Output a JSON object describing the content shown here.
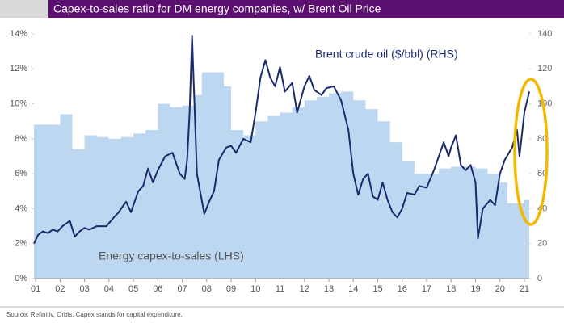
{
  "chart_data": {
    "type": "area_line",
    "title": "Capex-to-sales ratio for DM energy companies, w/ Brent Oil Price",
    "annotations": [
      "Brent crude oil ($/bbl) (RHS)",
      "Energy capex-to-sales (LHS)"
    ],
    "source": "Source: Refinitiv, Orbis. Capex stands for capital expenditure.",
    "xlim": [
      2000.93,
      2021.2
    ],
    "xticks": [
      {
        "value": 2001,
        "label": "01"
      },
      {
        "value": 2002,
        "label": "02"
      },
      {
        "value": 2003,
        "label": "03"
      },
      {
        "value": 2004,
        "label": "04"
      },
      {
        "value": 2005,
        "label": "05"
      },
      {
        "value": 2006,
        "label": "06"
      },
      {
        "value": 2007,
        "label": "07"
      },
      {
        "value": 2008,
        "label": "08"
      },
      {
        "value": 2009,
        "label": "09"
      },
      {
        "value": 2010,
        "label": "10"
      },
      {
        "value": 2011,
        "label": "11"
      },
      {
        "value": 2012,
        "label": "12"
      },
      {
        "value": 2013,
        "label": "13"
      },
      {
        "value": 2014,
        "label": "14"
      },
      {
        "value": 2015,
        "label": "15"
      },
      {
        "value": 2016,
        "label": "16"
      },
      {
        "value": 2017,
        "label": "17"
      },
      {
        "value": 2018,
        "label": "18"
      },
      {
        "value": 2019,
        "label": "19"
      },
      {
        "value": 2020,
        "label": "20"
      },
      {
        "value": 2021,
        "label": "21"
      }
    ],
    "ylim": [
      0,
      14
    ],
    "yticks": [
      {
        "value": 0,
        "label": "0%"
      },
      {
        "value": 2,
        "label": "2%"
      },
      {
        "value": 4,
        "label": "4%"
      },
      {
        "value": 6,
        "label": "6%"
      },
      {
        "value": 8,
        "label": "8%"
      },
      {
        "value": 10,
        "label": "10%"
      },
      {
        "value": 12,
        "label": "12%"
      },
      {
        "value": 14,
        "label": "14%"
      }
    ],
    "y2lim": [
      0,
      140
    ],
    "y2ticks": [
      0,
      20,
      40,
      60,
      80,
      100,
      120,
      140
    ],
    "series": [
      {
        "name": "Energy capex-to-sales (LHS)",
        "kind": "area",
        "color": "#bcd7ef",
        "x": [
          2000.93,
          2001.5,
          2002.0,
          2002.4,
          2002.5,
          2003.0,
          2003.5,
          2004.0,
          2004.5,
          2005.0,
          2005.5,
          2006.0,
          2006.5,
          2007.0,
          2007.5,
          2007.8,
          2008.0,
          2008.7,
          2009.0,
          2009.5,
          2010.0,
          2010.5,
          2011.0,
          2011.5,
          2012.0,
          2012.5,
          2013.0,
          2013.5,
          2014.0,
          2014.5,
          2015.0,
          2015.5,
          2016.0,
          2016.5,
          2017.0,
          2017.5,
          2018.0,
          2018.5,
          2019.0,
          2019.5,
          2020.0,
          2020.3,
          2020.7,
          2021.0,
          2021.2
        ],
        "values": [
          8.8,
          8.8,
          9.4,
          9.4,
          7.4,
          8.2,
          8.1,
          8.0,
          8.1,
          8.3,
          8.5,
          10.0,
          9.8,
          9.9,
          10.5,
          11.8,
          11.8,
          11.0,
          8.5,
          8.2,
          9.0,
          9.3,
          9.5,
          9.8,
          10.2,
          10.4,
          10.6,
          10.7,
          10.2,
          9.7,
          9.0,
          7.8,
          6.7,
          6.0,
          6.0,
          6.3,
          6.4,
          6.4,
          6.3,
          6.0,
          5.5,
          4.3,
          4.3,
          4.5,
          4.5
        ]
      },
      {
        "name": "Brent crude oil ($/bbl) (RHS)",
        "kind": "line",
        "axis": "y2",
        "color": "#1a2a6c",
        "x": [
          2000.93,
          2001.1,
          2001.3,
          2001.5,
          2001.7,
          2001.9,
          2002.1,
          2002.4,
          2002.6,
          2002.8,
          2003.0,
          2003.2,
          2003.5,
          2003.9,
          2004.2,
          2004.4,
          2004.7,
          2004.9,
          2005.2,
          2005.4,
          2005.6,
          2005.8,
          2006.0,
          2006.3,
          2006.6,
          2006.9,
          2007.1,
          2007.2,
          2007.3,
          2007.4,
          2007.6,
          2007.9,
          2008.1,
          2008.3,
          2008.5,
          2008.8,
          2009.0,
          2009.2,
          2009.5,
          2009.8,
          2010.0,
          2010.2,
          2010.4,
          2010.6,
          2010.8,
          2011.0,
          2011.2,
          2011.5,
          2011.7,
          2012.0,
          2012.2,
          2012.4,
          2012.7,
          2012.9,
          2013.2,
          2013.5,
          2013.8,
          2014.0,
          2014.2,
          2014.4,
          2014.6,
          2014.8,
          2015.0,
          2015.2,
          2015.4,
          2015.6,
          2015.8,
          2016.0,
          2016.2,
          2016.5,
          2016.7,
          2017.0,
          2017.3,
          2017.5,
          2017.7,
          2017.9,
          2018.0,
          2018.2,
          2018.4,
          2018.6,
          2018.8,
          2019.0,
          2019.1,
          2019.3,
          2019.6,
          2019.8,
          2020.0,
          2020.2,
          2020.5,
          2020.7,
          2020.8,
          2021.0,
          2021.2
        ],
        "values": [
          20,
          25,
          27,
          26,
          28,
          27,
          30,
          33,
          24,
          27,
          29,
          28,
          30,
          30,
          35,
          38,
          44,
          38,
          50,
          53,
          63,
          55,
          62,
          70,
          72,
          60,
          57,
          68,
          95,
          139,
          60,
          37,
          44,
          50,
          68,
          75,
          76,
          72,
          80,
          78,
          95,
          115,
          125,
          115,
          110,
          121,
          107,
          112,
          95,
          110,
          116,
          108,
          105,
          109,
          110,
          102,
          85,
          60,
          48,
          57,
          60,
          47,
          45,
          55,
          45,
          38,
          35,
          40,
          49,
          48,
          53,
          52,
          62,
          70,
          78,
          70,
          75,
          82,
          65,
          62,
          65,
          55,
          23,
          40,
          45,
          42,
          60,
          68,
          75,
          85,
          70,
          95,
          107
        ]
      }
    ]
  }
}
